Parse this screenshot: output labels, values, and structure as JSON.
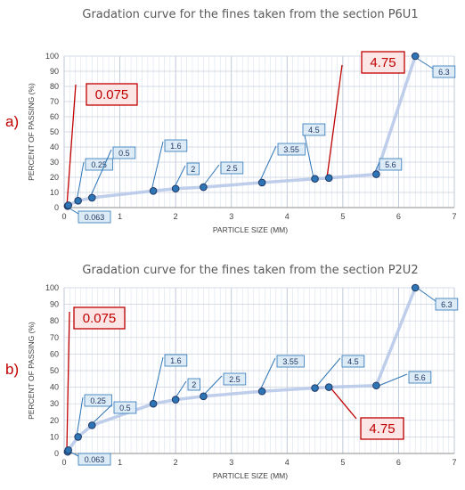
{
  "chart_data": [
    {
      "type": "line",
      "panel_label": "a)",
      "title": "Gradation curve for the fines taken from the section P6U1",
      "xlabel": "PARTICLE SIZE (MM)",
      "ylabel": "PERCENT OF PASSING (%)",
      "xlim": [
        0,
        7
      ],
      "ylim": [
        0,
        100
      ],
      "x_ticks": [
        "0",
        "1",
        "2",
        "3",
        "4",
        "5",
        "6",
        "7"
      ],
      "y_ticks": [
        "0",
        "10",
        "20",
        "30",
        "40",
        "50",
        "60",
        "70",
        "80",
        "90",
        "100"
      ],
      "grid": true,
      "series": [
        {
          "x": [
            0.063,
            0.075,
            0.25,
            0.5,
            1.6,
            2,
            2.5,
            3.55,
            4.5,
            4.75,
            5.6,
            6.3
          ],
          "y": [
            1,
            1.5,
            4.5,
            6.5,
            11,
            12.5,
            13.5,
            16.5,
            19,
            19.5,
            22,
            100
          ],
          "point_labels": [
            "0.063",
            "0.075",
            "0.25",
            "0.5",
            "1.6",
            "2",
            "2.5",
            "3.55",
            "4.5",
            "4.75",
            "5.6",
            "6.3"
          ],
          "highlight": [
            "0.075",
            "4.75"
          ]
        }
      ]
    },
    {
      "type": "line",
      "panel_label": "b)",
      "title": "Gradation curve for the fines taken from the section P2U2",
      "xlabel": "PARTICLE SIZE (MM)",
      "ylabel": "PERCENT OF PASSING (%)",
      "xlim": [
        0,
        7
      ],
      "ylim": [
        0,
        100
      ],
      "x_ticks": [
        "0",
        "1",
        "2",
        "3",
        "4",
        "5",
        "6",
        "7"
      ],
      "y_ticks": [
        "0",
        "10",
        "20",
        "30",
        "40",
        "50",
        "60",
        "70",
        "80",
        "90",
        "100"
      ],
      "grid": true,
      "series": [
        {
          "x": [
            0.063,
            0.075,
            0.25,
            0.5,
            1.6,
            2,
            2.5,
            3.55,
            4.5,
            4.75,
            5.6,
            6.3
          ],
          "y": [
            1,
            2,
            10,
            17,
            30,
            32.5,
            34.5,
            37.5,
            39.5,
            40,
            41,
            100
          ],
          "point_labels": [
            "0.063",
            "0.075",
            "0.25",
            "0.5",
            "1.6",
            "2",
            "2.5",
            "3.55",
            "4.5",
            "4.75",
            "5.6",
            "6.3"
          ],
          "highlight": [
            "0.075",
            "4.75"
          ]
        }
      ]
    }
  ]
}
